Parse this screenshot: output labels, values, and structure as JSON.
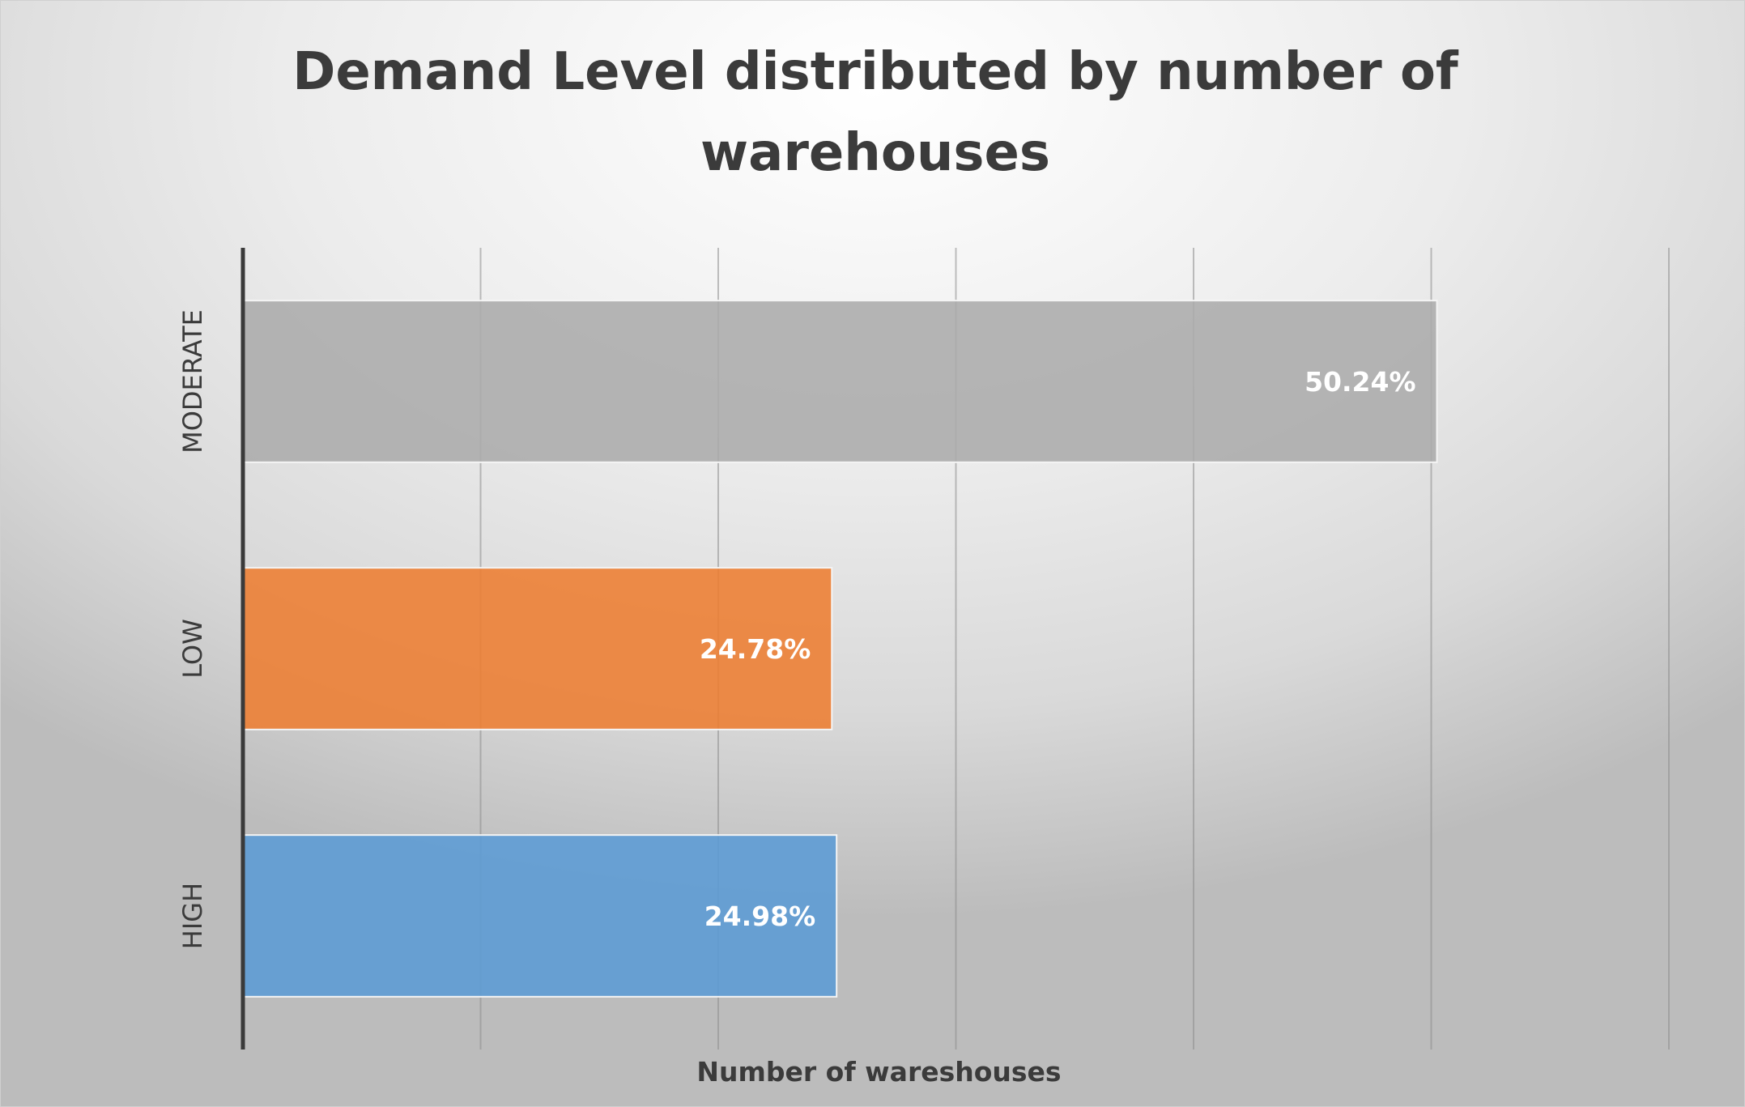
{
  "chart_data": {
    "type": "bar",
    "orientation": "horizontal",
    "title": "Demand Level distributed by number of warehouses",
    "xlabel": "Number of wareshouses",
    "ylabel": "",
    "categories": [
      "MODERATE",
      "LOW",
      "HIGH"
    ],
    "values": [
      50.24,
      24.78,
      24.98
    ],
    "data_labels": [
      "50.24%",
      "24.78%",
      "24.98%"
    ],
    "colors": [
      "#ABABAB",
      "#ED7D31",
      "#5B9BD5"
    ],
    "xlim": [
      0,
      60
    ],
    "grid": true,
    "legend": "none"
  }
}
